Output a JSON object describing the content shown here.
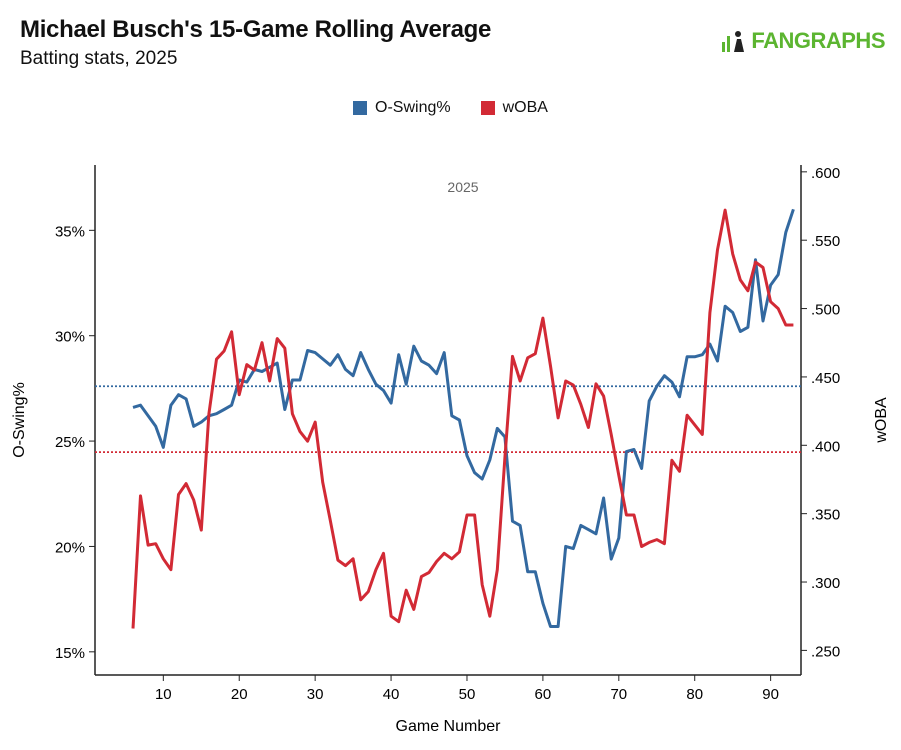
{
  "header": {
    "title": "Michael Busch's 15-Game Rolling Average",
    "subtitle": "Batting stats, 2025",
    "logo_text": "FANGRAPHS"
  },
  "colors": {
    "o_swing": "#3369a0",
    "woba": "#d22a35",
    "logo": "#5cb531"
  },
  "chart_data": {
    "type": "line",
    "title": "Michael Busch's 15-Game Rolling Average",
    "subtitle": "Batting stats, 2025",
    "panel_label": "2025",
    "xlabel": "Game Number",
    "ylabel": "O-Swing%",
    "y2label": "wOBA",
    "xlim": [
      1,
      94
    ],
    "ylim": [
      13.9,
      38.1
    ],
    "y2lim": [
      0.232,
      0.605
    ],
    "xticks": [
      10,
      20,
      30,
      40,
      50,
      60,
      70,
      80,
      90
    ],
    "xtick_labels": [
      "10",
      "20",
      "30",
      "40",
      "50",
      "60",
      "70",
      "80",
      "90"
    ],
    "yticks": [
      15,
      20,
      25,
      30,
      35
    ],
    "ytick_labels": [
      "15%",
      "20%",
      "25%",
      "30%",
      "35%"
    ],
    "y2ticks": [
      0.25,
      0.3,
      0.35,
      0.4,
      0.45,
      0.5,
      0.55,
      0.6
    ],
    "y2tick_labels": [
      ".250",
      ".300",
      ".350",
      ".400",
      ".450",
      ".500",
      ".550",
      ".600"
    ],
    "grid": false,
    "legend_position": "top-center",
    "x_start": 6,
    "series": [
      {
        "name": "O-Swing%",
        "axis": "left",
        "color": "#3369a0",
        "average": 27.6,
        "values": [
          26.6,
          26.7,
          26.2,
          25.7,
          24.7,
          26.7,
          27.2,
          27.0,
          25.7,
          25.9,
          26.2,
          26.3,
          26.5,
          26.7,
          27.9,
          27.8,
          28.4,
          28.3,
          28.5,
          28.7,
          26.5,
          27.9,
          27.9,
          29.3,
          29.2,
          28.9,
          28.6,
          29.1,
          28.4,
          28.1,
          29.2,
          28.4,
          27.7,
          27.4,
          26.8,
          29.1,
          27.7,
          29.5,
          28.8,
          28.6,
          28.2,
          29.2,
          26.2,
          26.0,
          24.3,
          23.5,
          23.2,
          24.1,
          25.6,
          25.2,
          21.2,
          21.0,
          18.8,
          18.8,
          17.3,
          16.2,
          16.2,
          20.0,
          19.9,
          21.0,
          20.8,
          20.6,
          22.3,
          19.4,
          20.4,
          24.5,
          24.6,
          23.7,
          26.9,
          27.6,
          28.1,
          27.8,
          27.1,
          29.0,
          29.0,
          29.1,
          29.6,
          28.8,
          31.4,
          31.1,
          30.2,
          30.4,
          33.6,
          30.7,
          32.4,
          32.9,
          34.9,
          36.0
        ]
      },
      {
        "name": "wOBA",
        "axis": "right",
        "color": "#d22a35",
        "average": 0.395,
        "values": [
          0.266,
          0.363,
          0.327,
          0.328,
          0.317,
          0.309,
          0.364,
          0.372,
          0.36,
          0.338,
          0.423,
          0.463,
          0.469,
          0.483,
          0.437,
          0.459,
          0.455,
          0.475,
          0.447,
          0.478,
          0.471,
          0.423,
          0.41,
          0.403,
          0.417,
          0.373,
          0.345,
          0.316,
          0.312,
          0.317,
          0.287,
          0.293,
          0.309,
          0.321,
          0.275,
          0.271,
          0.294,
          0.28,
          0.304,
          0.307,
          0.315,
          0.321,
          0.317,
          0.322,
          0.349,
          0.349,
          0.298,
          0.275,
          0.309,
          0.391,
          0.465,
          0.447,
          0.464,
          0.467,
          0.493,
          0.458,
          0.42,
          0.447,
          0.444,
          0.43,
          0.413,
          0.445,
          0.436,
          0.408,
          0.378,
          0.349,
          0.349,
          0.326,
          0.329,
          0.331,
          0.328,
          0.389,
          0.381,
          0.422,
          0.415,
          0.408,
          0.497,
          0.543,
          0.572,
          0.54,
          0.521,
          0.513,
          0.534,
          0.53,
          0.505,
          0.5,
          0.488,
          0.488
        ]
      }
    ]
  }
}
